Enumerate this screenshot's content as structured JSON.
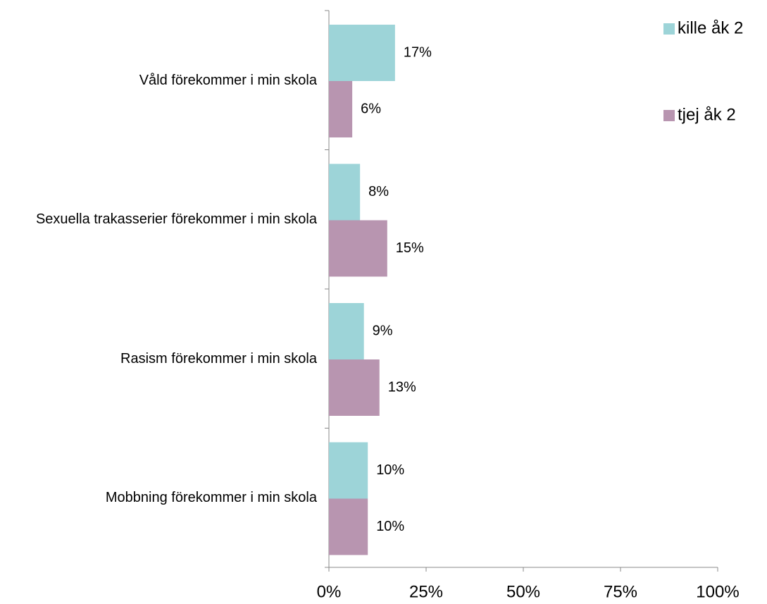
{
  "chart_data": {
    "type": "bar",
    "orientation": "horizontal",
    "categories": [
      "Våld förekommer i min skola",
      "Sexuella trakasserier förekommer i min skola",
      "Rasism förekommer i min skola",
      "Mobbning förekommer i min skola"
    ],
    "series": [
      {
        "name": "kille åk 2",
        "color": "#9dd4d8",
        "values": [
          17,
          8,
          9,
          10
        ],
        "value_labels": [
          "17%",
          "8%",
          "9%",
          "10%"
        ]
      },
      {
        "name": "tjej åk 2",
        "color": "#b895b0",
        "values": [
          6,
          15,
          13,
          10
        ],
        "value_labels": [
          "6%",
          "15%",
          "13%",
          "10%"
        ]
      }
    ],
    "xlim": [
      0,
      100
    ],
    "xticks": [
      {
        "value": 0,
        "label": "0%"
      },
      {
        "value": 25,
        "label": "25%"
      },
      {
        "value": 50,
        "label": "50%"
      },
      {
        "value": 75,
        "label": "75%"
      },
      {
        "value": 100,
        "label": "100%"
      }
    ],
    "legend": "top-right",
    "grid": false
  }
}
